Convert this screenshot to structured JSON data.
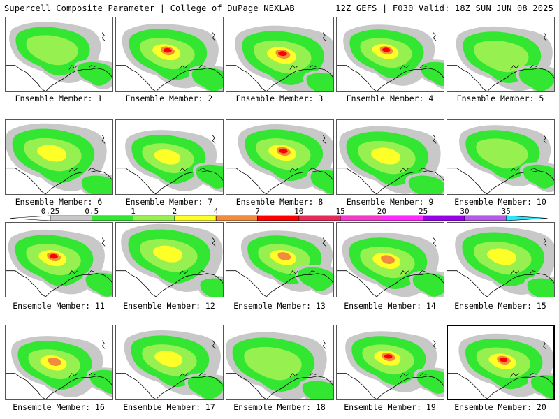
{
  "header": {
    "left": "Supercell Composite Parameter | College of DuPage NEXLAB",
    "right": "12Z GEFS | F030 Valid: 18Z SUN JUN 08 2025"
  },
  "colorbar": {
    "labels": [
      "0.25",
      "0.5",
      "1",
      "2",
      "4",
      "7",
      "10",
      "15",
      "20",
      "25",
      "30",
      "35"
    ],
    "colors": [
      "#c8c8c8",
      "#32e632",
      "#96f050",
      "#ffff28",
      "#f08c3c",
      "#ff0000",
      "#e6285a",
      "#f03cc8",
      "#ff28ff",
      "#9600e6",
      "#b45ae6",
      "#28e6ff"
    ],
    "under_color": "#ffffff",
    "over_color": "#28e6ff"
  },
  "map_colors": {
    "land": "#ffffff",
    "coast": "#000000",
    "c1": "#c8c8c8",
    "c2": "#32e632",
    "c3": "#96f050",
    "c4": "#ffff28",
    "c5": "#f08c3c",
    "c6": "#ff0000"
  },
  "members": [
    {
      "label": "Ensemble Member: 1",
      "selected": false,
      "peak": "c3"
    },
    {
      "label": "Ensemble Member: 2",
      "selected": false,
      "peak": "c6"
    },
    {
      "label": "Ensemble Member: 3",
      "selected": false,
      "peak": "c6"
    },
    {
      "label": "Ensemble Member: 4",
      "selected": false,
      "peak": "c6"
    },
    {
      "label": "Ensemble Member: 5",
      "selected": false,
      "peak": "c3"
    },
    {
      "label": "Ensemble Member: 6",
      "selected": false,
      "peak": "c4"
    },
    {
      "label": "Ensemble Member: 7",
      "selected": false,
      "peak": "c4"
    },
    {
      "label": "Ensemble Member: 8",
      "selected": false,
      "peak": "c6"
    },
    {
      "label": "Ensemble Member: 9",
      "selected": false,
      "peak": "c4"
    },
    {
      "label": "Ensemble Member: 10",
      "selected": false,
      "peak": "c3"
    },
    {
      "label": "Ensemble Member: 11",
      "selected": false,
      "peak": "c6"
    },
    {
      "label": "Ensemble Member: 12",
      "selected": false,
      "peak": "c4"
    },
    {
      "label": "Ensemble Member: 13",
      "selected": false,
      "peak": "c5"
    },
    {
      "label": "Ensemble Member: 14",
      "selected": false,
      "peak": "c5"
    },
    {
      "label": "Ensemble Member: 15",
      "selected": false,
      "peak": "c4"
    },
    {
      "label": "Ensemble Member: 16",
      "selected": false,
      "peak": "c5"
    },
    {
      "label": "Ensemble Member: 17",
      "selected": false,
      "peak": "c4"
    },
    {
      "label": "Ensemble Member: 18",
      "selected": false,
      "peak": "c3"
    },
    {
      "label": "Ensemble Member: 19",
      "selected": false,
      "peak": "c6"
    },
    {
      "label": "Ensemble Member: 20",
      "selected": true,
      "peak": "c6"
    }
  ]
}
